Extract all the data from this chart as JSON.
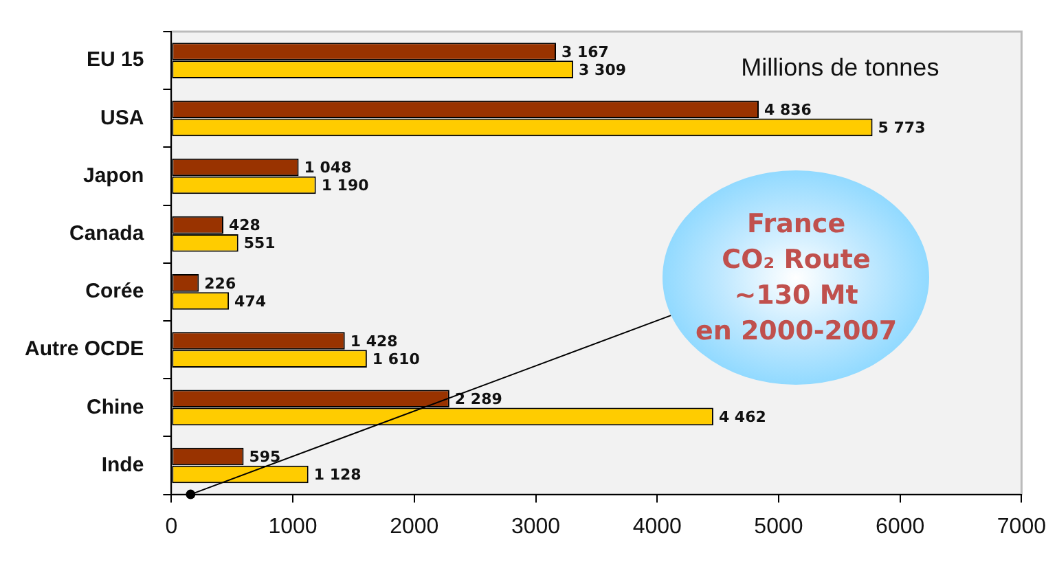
{
  "chart_data": {
    "type": "bar",
    "orientation": "horizontal",
    "categories": [
      "EU 15",
      "USA",
      "Japon",
      "Canada",
      "Corée",
      "Autre OCDE",
      "Chine",
      "Inde"
    ],
    "series": [
      {
        "color": "#993300",
        "values": [
          3167,
          4836,
          1048,
          428,
          226,
          1428,
          2289,
          595
        ],
        "value_labels": [
          "3 167",
          "4 836",
          "1 048",
          "428",
          "226",
          "1 428",
          "2 289",
          "595"
        ]
      },
      {
        "color": "#ffcc00",
        "values": [
          3309,
          5773,
          1190,
          551,
          474,
          1610,
          4462,
          1128
        ],
        "value_labels": [
          "3 309",
          "5 773",
          "1 190",
          "551",
          "474",
          "1 610",
          "4 462",
          "1 128"
        ]
      }
    ],
    "xlim": [
      0,
      7000
    ],
    "xticks": [
      0,
      1000,
      2000,
      3000,
      4000,
      5000,
      6000,
      7000
    ],
    "grid": false,
    "legend": false,
    "annotations": [
      "Millions de tonnes",
      "France\nCO₂ Route\n~130 Mt\nen 2000-2007"
    ]
  }
}
